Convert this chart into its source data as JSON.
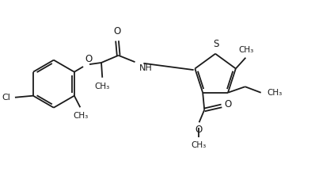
{
  "background": "#ffffff",
  "line_color": "#1a1a1a",
  "line_width": 1.3,
  "figsize": [
    4.22,
    2.13
  ],
  "dpi": 100,
  "xlim": [
    0,
    10.0
  ],
  "ylim": [
    0,
    5.0
  ]
}
